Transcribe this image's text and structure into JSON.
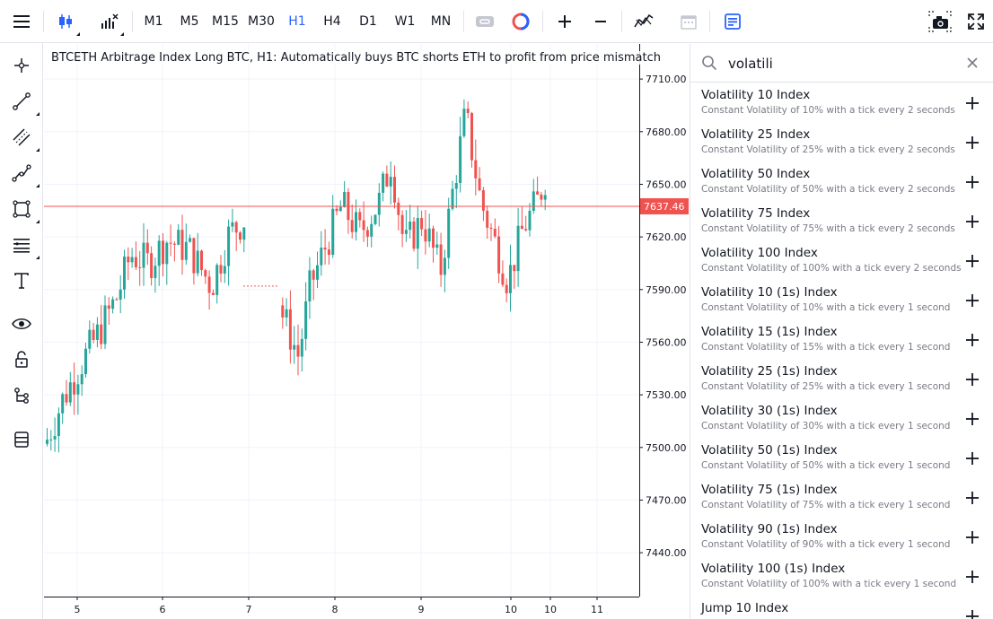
{
  "toolbar": {
    "timeframes": [
      "M1",
      "M5",
      "M15",
      "M30",
      "H1",
      "H4",
      "D1",
      "W1",
      "MN"
    ],
    "active_timeframe": "H1"
  },
  "chart": {
    "title": "BTCETH Arbitrage Index Long BTC, H1: Automatically buys BTC shorts ETH to profit from price mismatch",
    "current_price": "7637.46",
    "price_ticks": [
      "7710.00",
      "7680.00",
      "7650.00",
      "7620.00",
      "7590.00",
      "7560.00",
      "7530.00",
      "7500.00",
      "7470.00",
      "7440.00"
    ],
    "date_ticks": [
      "5",
      "6",
      "7",
      "8",
      "9",
      "10",
      "10",
      "11"
    ]
  },
  "chart_data": {
    "type": "candlestick",
    "title": "BTCETH Arbitrage Index Long BTC, H1: Automatically buys BTC shorts ETH to profit from price mismatch",
    "xlabel": "",
    "ylabel": "",
    "ylim": [
      7415,
      7730
    ],
    "y_ticks": [
      7710,
      7680,
      7650,
      7620,
      7590,
      7560,
      7530,
      7500,
      7470,
      7440
    ],
    "x_ticks": [
      "5",
      "6",
      "7",
      "8",
      "9",
      "10",
      "10",
      "11"
    ],
    "last_price": 7637.46,
    "up_color": "#26a69a",
    "down_color": "#ef5350",
    "price_line_color": "#ef5350"
  },
  "search": {
    "query": "volatili",
    "results": [
      {
        "name": "Volatility 10 Index",
        "description": "Constant Volatility of 10% with a tick every 2 seconds"
      },
      {
        "name": "Volatility 25 Index",
        "description": "Constant Volatility of 25% with a tick every 2 seconds"
      },
      {
        "name": "Volatility 50 Index",
        "description": "Constant Volatility of 50% with a tick every 2 seconds"
      },
      {
        "name": "Volatility 75 Index",
        "description": "Constant Volatility of 75% with a tick every 2 seconds"
      },
      {
        "name": "Volatility 100 Index",
        "description": "Constant Volatility of 100% with a tick every 2 seconds"
      },
      {
        "name": "Volatility 10 (1s) Index",
        "description": "Constant Volatility of 10% with a tick every 1 second"
      },
      {
        "name": "Volatility 15 (1s) Index",
        "description": "Constant Volatility of 15% with a tick every 1 second"
      },
      {
        "name": "Volatility 25 (1s) Index",
        "description": "Constant Volatility of 25% with a tick every 1 second"
      },
      {
        "name": "Volatility 30 (1s) Index",
        "description": "Constant Volatility of 30% with a tick every 1 second"
      },
      {
        "name": "Volatility 50 (1s) Index",
        "description": "Constant Volatility of 50% with a tick every 1 second"
      },
      {
        "name": "Volatility 75 (1s) Index",
        "description": "Constant Volatility of 75% with a tick every 1 second"
      },
      {
        "name": "Volatility 90 (1s) Index",
        "description": "Constant Volatility of 90% with a tick every 1 second"
      },
      {
        "name": "Volatility 100 (1s) Index",
        "description": "Constant Volatility of 100% with a tick every 1 second"
      },
      {
        "name": "Jump 10 Index",
        "description": ""
      }
    ]
  },
  "colors": {
    "accent": "#2962ff",
    "up": "#26a69a",
    "down": "#ef5350",
    "border": "#e0e3eb",
    "muted_text": "#787b86"
  }
}
